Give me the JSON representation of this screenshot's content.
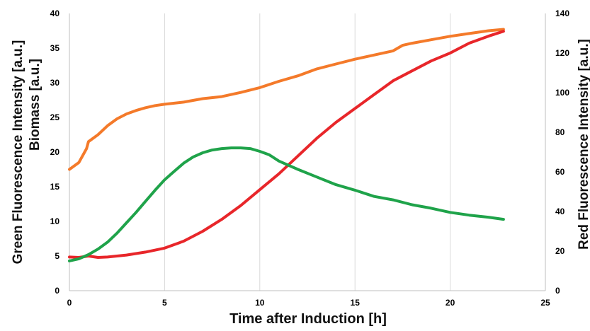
{
  "chart_data": {
    "type": "line",
    "xlabel": "Time after Induction [h]",
    "ylabel_left_line1": "Green  Fluorescence Intensity [a.u.]",
    "ylabel_left_line2": "Biomass [a.u.]",
    "ylabel_right": "Red Fluorescence Intensity [a.u.]",
    "xlim": [
      0,
      25
    ],
    "ylim_left": [
      0,
      40
    ],
    "ylim_right": [
      0,
      140
    ],
    "xticks": [
      "0",
      "5",
      "10",
      "15",
      "20",
      "25"
    ],
    "yticks_left": [
      "0",
      "5",
      "10",
      "15",
      "20",
      "25",
      "30",
      "35",
      "40"
    ],
    "yticks_right": [
      "0",
      "20",
      "40",
      "60",
      "80",
      "100",
      "120",
      "140"
    ],
    "grid": "vertical",
    "series": [
      {
        "color": "#f47a2a",
        "axis": "left",
        "x": [
          0,
          0.5,
          0.9,
          1.0,
          1.5,
          2,
          2.5,
          3,
          3.5,
          4,
          4.5,
          5,
          6,
          7,
          8,
          9,
          10,
          11,
          12,
          13,
          14,
          15,
          16,
          17,
          17.5,
          18,
          19,
          20,
          21,
          22,
          22.8
        ],
        "y": [
          17.5,
          18.5,
          20.5,
          21.5,
          22.5,
          23.8,
          24.8,
          25.5,
          26.0,
          26.4,
          26.7,
          26.9,
          27.2,
          27.7,
          28.0,
          28.6,
          29.3,
          30.2,
          31.0,
          32.0,
          32.7,
          33.4,
          34.0,
          34.6,
          35.4,
          35.7,
          36.2,
          36.7,
          37.1,
          37.5,
          37.7
        ]
      },
      {
        "color": "#e8262a",
        "axis": "right",
        "x": [
          0,
          0.5,
          1,
          1.5,
          2,
          3,
          4,
          5,
          6,
          7,
          8,
          9,
          10,
          11,
          12,
          13,
          14,
          15,
          16,
          17,
          17.5,
          18,
          19,
          20,
          21,
          22,
          22.8
        ],
        "y": [
          17.0,
          16.8,
          17.5,
          16.8,
          17.0,
          18.0,
          19.5,
          21.5,
          25.0,
          30.0,
          36.0,
          43.0,
          51.0,
          59.0,
          68.0,
          77.0,
          85.0,
          92.0,
          99.0,
          106.0,
          108.5,
          111.0,
          116.0,
          120.0,
          125.0,
          128.5,
          131.0
        ]
      },
      {
        "color": "#1fa34a",
        "axis": "left",
        "x": [
          0,
          0.5,
          1,
          1.5,
          2,
          2.5,
          3,
          3.5,
          4,
          4.5,
          5,
          5.5,
          6,
          6.5,
          7,
          7.5,
          8,
          8.5,
          9,
          9.5,
          10,
          10.5,
          11,
          12,
          13,
          14,
          15,
          16,
          17,
          18,
          19,
          20,
          21,
          22,
          22.8
        ],
        "y": [
          4.3,
          4.6,
          5.2,
          6.0,
          7.0,
          8.3,
          9.8,
          11.3,
          12.9,
          14.5,
          16.0,
          17.2,
          18.4,
          19.3,
          19.9,
          20.3,
          20.5,
          20.6,
          20.6,
          20.5,
          20.1,
          19.6,
          18.7,
          17.5,
          16.4,
          15.3,
          14.5,
          13.6,
          13.1,
          12.4,
          11.9,
          11.3,
          10.9,
          10.6,
          10.3
        ]
      }
    ]
  }
}
